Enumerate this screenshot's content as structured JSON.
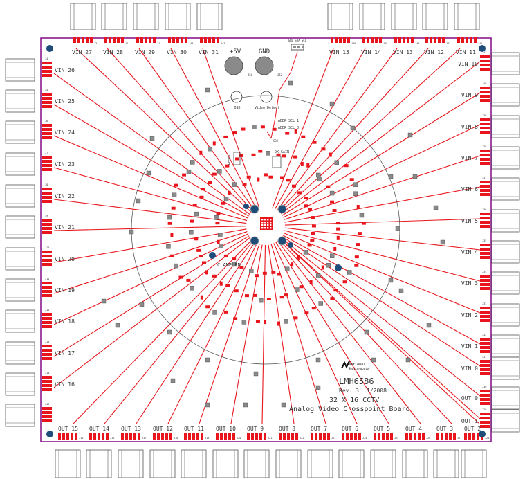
{
  "board": {
    "title": "LMH6586",
    "rev": "Rev. 3",
    "date": "1/2008",
    "subtitle1": "32 X 16 CCTV",
    "subtitle2": "Analog Video Crosspoint Board",
    "logo_text1": "National",
    "logo_text2": "Semiconductor"
  },
  "power": {
    "plus5v": "+5V",
    "gnd": "GND",
    "plus5v_ref": "J50",
    "gnd_ref": "J52"
  },
  "center_labels": {
    "addr_sel_1": "ADDR SEL 1",
    "addr_sel_0": "ADDR SEL 0",
    "x2_gain": "2X GAIN",
    "clamp_en": "CLAMP EN",
    "reset": "RESET",
    "sda": "SDA",
    "video_detect": "Video Detect",
    "osd": "OSD",
    "gnd_sda_scl": "GND SDA SCL"
  },
  "top_connectors": [
    {
      "label": "VIN 27",
      "ref": "J3"
    },
    {
      "label": "VIN 28",
      "ref": "J2"
    },
    {
      "label": "VIN 29",
      "ref": "J1"
    },
    {
      "label": "VIN 30",
      "ref": "J48"
    },
    {
      "label": "VIN 31",
      "ref": "J47"
    },
    {
      "label": "VIN 15",
      "ref": "J46"
    },
    {
      "label": "VIN 14",
      "ref": "J45"
    },
    {
      "label": "VIN 13",
      "ref": "J44"
    },
    {
      "label": "VIN 12",
      "ref": "J43"
    },
    {
      "label": "VIN 11",
      "ref": "J42"
    }
  ],
  "left_connectors": [
    {
      "label": "VIN 26",
      "ref": "J4"
    },
    {
      "label": "VIN 25",
      "ref": "J5"
    },
    {
      "label": "VIN 24",
      "ref": "J6"
    },
    {
      "label": "VIN 23",
      "ref": "J7"
    },
    {
      "label": "VIN 22",
      "ref": "J8"
    },
    {
      "label": "VIN 21",
      "ref": "J9"
    },
    {
      "label": "VIN 20",
      "ref": "J10"
    },
    {
      "label": "VIN 19",
      "ref": "J11"
    },
    {
      "label": "VIN 18",
      "ref": "J12"
    },
    {
      "label": "VIN 17",
      "ref": "J13"
    },
    {
      "label": "VIN 16",
      "ref": "J14"
    },
    {
      "label": "",
      "ref": "J49"
    }
  ],
  "right_connectors": [
    {
      "label": "VIN 10",
      "ref": "J41"
    },
    {
      "label": "VIN 9",
      "ref": "J40"
    },
    {
      "label": "VIN 8",
      "ref": "J39"
    },
    {
      "label": "VIN 7",
      "ref": "J38"
    },
    {
      "label": "VIN 6",
      "ref": "J37"
    },
    {
      "label": "VIN 5",
      "ref": "J36"
    },
    {
      "label": "VIN 4",
      "ref": "J35"
    },
    {
      "label": "VIN 3",
      "ref": "J34"
    },
    {
      "label": "VIN 2",
      "ref": "J33"
    },
    {
      "label": "VIN 1",
      "ref": "J32"
    },
    {
      "label": "VIN 0",
      "ref": "J31"
    },
    {
      "label": "OUT 0",
      "ref": "J30"
    },
    {
      "label": "OUT 1",
      "ref": "J29"
    }
  ],
  "bottom_connectors": [
    {
      "label": "OUT 15",
      "ref": "J15"
    },
    {
      "label": "OUT 14",
      "ref": "J16"
    },
    {
      "label": "OUT 13",
      "ref": "J17"
    },
    {
      "label": "OUT 12",
      "ref": "J18"
    },
    {
      "label": "OUT 11",
      "ref": "J19"
    },
    {
      "label": "OUT 10",
      "ref": "J20"
    },
    {
      "label": "OUT 9",
      "ref": "J21"
    },
    {
      "label": "OUT 8",
      "ref": "J22"
    },
    {
      "label": "OUT 7",
      "ref": "J23"
    },
    {
      "label": "OUT 6",
      "ref": "J24"
    },
    {
      "label": "OUT 5",
      "ref": "J25"
    },
    {
      "label": "OUT 4",
      "ref": "J26"
    },
    {
      "label": "OUT 3",
      "ref": "J27"
    },
    {
      "label": "OUT 2",
      "ref": "J28"
    }
  ],
  "colors": {
    "trace": "#e8161c",
    "outline": "#8b1a8b",
    "silk": "#333333",
    "via": "#1e4d7a",
    "pad_grey": "#8a8a8a"
  }
}
